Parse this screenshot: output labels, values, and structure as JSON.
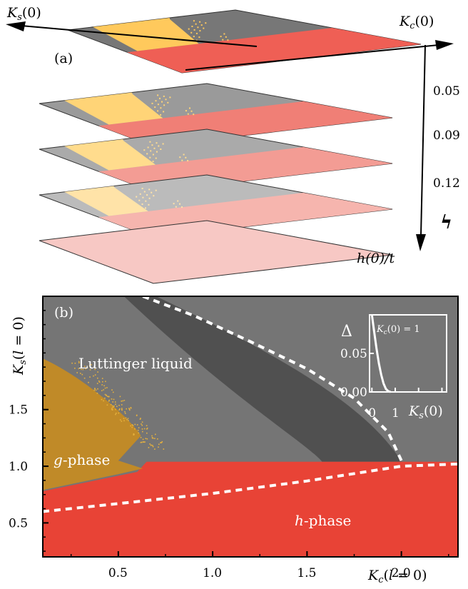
{
  "panel_a": {
    "label": "(a)",
    "axis_ks": "K",
    "axis_ks_sub": "s",
    "axis_ks_arg": "(0)",
    "axis_kc": "K",
    "axis_kc_sub": "c",
    "axis_kc_arg": "(0)",
    "axis_h": "h(0)/t",
    "h_ticks": [
      "0.05",
      "0.09",
      "0.12"
    ],
    "flow_symbol": "ϟ",
    "colors": {
      "layers": [
        "#777777",
        "#9a9a9a",
        "#aaaaaa",
        "#bbbbbb",
        "#f7c8c4"
      ],
      "red_layers": [
        "#ef5f55",
        "#f07f76",
        "#f39c94",
        "#f6b5ae",
        "#f7c8c4"
      ],
      "yellow_layers": [
        "#ffc95c",
        "#ffd477",
        "#ffdc8d",
        "#ffe3a8"
      ]
    }
  },
  "panel_b": {
    "label": "(b)",
    "regions": {
      "luttinger": "Luttinger liquid",
      "g_phase_italic": "g",
      "g_phase_rest": "-phase",
      "h_phase_italic": "h",
      "h_phase_rest": "-phase"
    },
    "inset": {
      "ylabel": "Δ",
      "annotation": "K",
      "annotation_sub": "c",
      "annotation_rest": "(0) = 1",
      "xlabel": "K",
      "xlabel_sub": "s",
      "xlabel_arg": "(0)"
    },
    "colors": {
      "background": "#757575",
      "dark_band": "#505050",
      "h_phase": "#e84336",
      "g_phase": "#c08a28",
      "g_speckle": "#e6b13e",
      "boundary": "#ffffff"
    }
  },
  "chart_data": {
    "type": "area",
    "xlabel": "K_c(l = 0)",
    "ylabel": "K_s(l = 0)",
    "xlim": [
      0.1,
      2.3
    ],
    "ylim": [
      0.2,
      2.5
    ],
    "x_ticks": [
      "0.5",
      "1.0",
      "1.5",
      "2.0"
    ],
    "y_ticks": [
      "0.5",
      "1.0",
      "1.5"
    ],
    "x_tick_values": [
      0.5,
      1.0,
      1.5,
      2.0
    ],
    "y_tick_values": [
      0.5,
      1.0,
      1.5
    ],
    "dashed_boundaries": [
      {
        "x": [
          0.1,
          0.5,
          1.0,
          1.5,
          2.0,
          2.3
        ],
        "y": [
          0.6,
          0.67,
          0.76,
          0.87,
          1.0,
          1.02
        ]
      },
      {
        "x": [
          0.63,
          0.9,
          1.2,
          1.5,
          1.75,
          1.93,
          2.0
        ],
        "y": [
          2.5,
          2.33,
          2.1,
          1.86,
          1.6,
          1.3,
          1.05
        ]
      }
    ],
    "inset": {
      "type": "line",
      "xlabel": "K_s(0)",
      "ylabel": "Δ",
      "x_ticks": [
        "0",
        "1"
      ],
      "y_ticks": [
        "0.00",
        "0.05"
      ],
      "x_tick_values": [
        0,
        1
      ],
      "y_tick_values": [
        0.0,
        0.05
      ],
      "xlim": [
        -0.1,
        3.2
      ],
      "ylim": [
        0,
        0.1
      ],
      "series": [
        {
          "x": [
            0.0,
            0.1,
            0.2,
            0.3,
            0.4,
            0.5,
            0.6,
            0.7,
            0.8
          ],
          "y": [
            0.1,
            0.078,
            0.056,
            0.037,
            0.022,
            0.011,
            0.004,
            0.001,
            0.0
          ]
        }
      ]
    }
  }
}
